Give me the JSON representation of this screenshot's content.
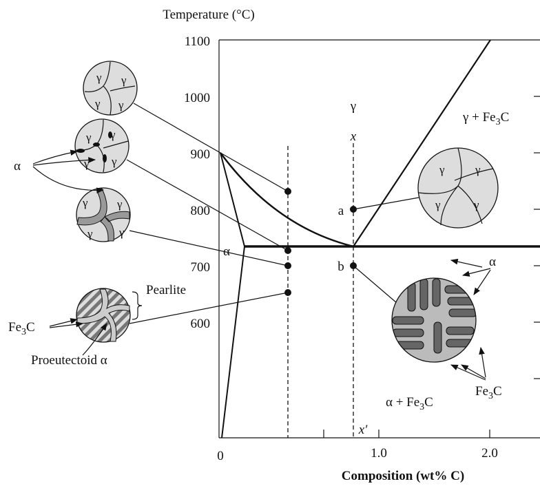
{
  "axis": {
    "y_title": "Temperature (°C)",
    "y_ticks": [
      "1100",
      "1000",
      "900",
      "800",
      "700",
      "600"
    ],
    "x_ticks": [
      "0",
      "1.0",
      "2.0"
    ],
    "x_title": "Composition (wt% C)"
  },
  "regions": {
    "gamma": "γ",
    "gamma_fe3c": [
      "γ + Fe",
      "3",
      "C"
    ],
    "alpha": "α",
    "alpha_fe3c": [
      "α + Fe",
      "3",
      "C"
    ]
  },
  "points": {
    "x": "x",
    "x_prime": "x′",
    "a": "a",
    "b": "b"
  },
  "microstructure": {
    "alpha": "α",
    "pearlite": "Pearlite",
    "fe3c": [
      "Fe",
      "3",
      "C"
    ],
    "proeutectoid": "Proeutectoid α",
    "gamma": "γ",
    "alpha_right": "α",
    "fe3c_right": [
      "Fe",
      "3",
      "C"
    ]
  }
}
